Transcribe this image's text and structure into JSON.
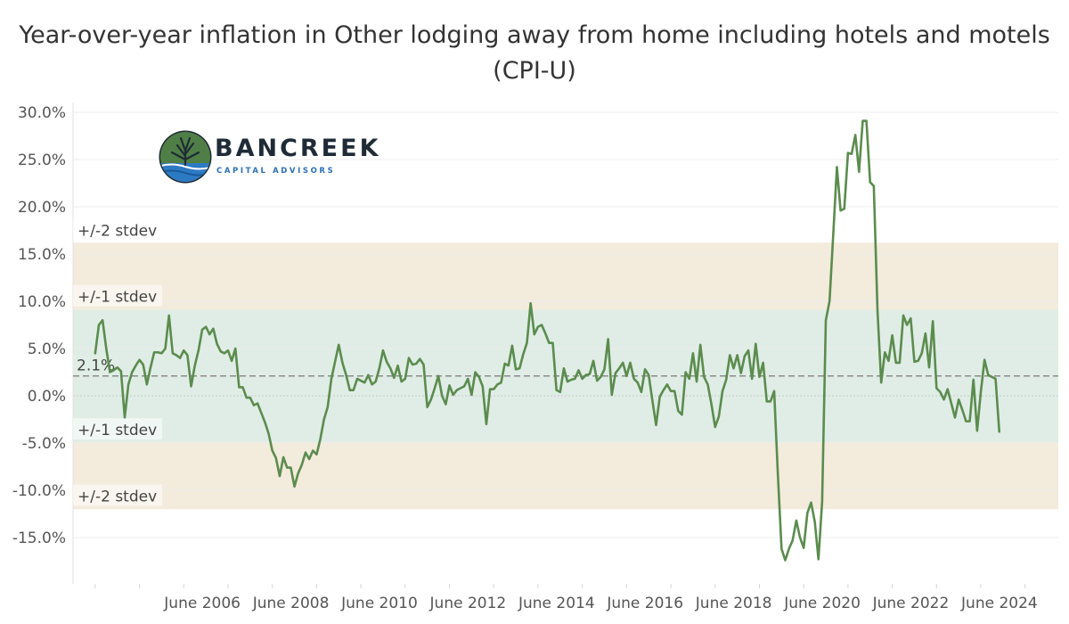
{
  "chart_data": {
    "type": "line",
    "title": "Year-over-year inflation in Other lodging away from home including hotels and motels (CPI-U)",
    "xlabel": "",
    "ylabel": "",
    "ylim": [
      -20,
      31
    ],
    "y_ticks": [
      30,
      25,
      20,
      15,
      10,
      5,
      0,
      -5,
      -10,
      -15
    ],
    "y_tick_labels": [
      "30.0%",
      "25.0%",
      "20.0%",
      "15.0%",
      "10.0%",
      "5.0%",
      "0.0%",
      "-5.0%",
      "-10.0%",
      "-15.0%"
    ],
    "x_range": [
      2003.5,
      2025.75
    ],
    "x_ticks": [
      2006.42,
      2008.42,
      2010.42,
      2012.42,
      2014.42,
      2016.42,
      2018.42,
      2020.42,
      2022.42,
      2024.42
    ],
    "x_tick_labels": [
      "June 2006",
      "June 2008",
      "June 2010",
      "June 2012",
      "June 2014",
      "June 2016",
      "June 2018",
      "June 2020",
      "June 2022",
      "June 2024"
    ],
    "grid": true,
    "mean": 2.1,
    "mean_label": "2.1%",
    "bands": [
      {
        "label": "+/-2 stdev",
        "lo": -12.0,
        "hi": 16.2,
        "color": "#f3ebdc"
      },
      {
        "label": "+/-1 stdev",
        "lo": -4.9,
        "hi": 9.1,
        "color": "#e0ede6"
      }
    ],
    "band_labels": [
      {
        "text": "+/-2 stdev",
        "y": 17.5
      },
      {
        "text": "+/-1 stdev",
        "y": 10.5
      },
      {
        "text": "+/-1 stdev",
        "y": -3.6
      },
      {
        "text": "+/-2 stdev",
        "y": -10.6
      }
    ],
    "series": [
      {
        "color": "#5b8c4e",
        "start": [
          2004,
          0
        ],
        "step_months": 1,
        "values": [
          4.5,
          7.5,
          8.0,
          5.0,
          2.5,
          2.7,
          3.0,
          2.6,
          -2.3,
          1.2,
          2.5,
          3.2,
          3.8,
          3.3,
          1.2,
          3.0,
          4.6,
          4.6,
          4.5,
          5.0,
          8.5,
          4.5,
          4.3,
          4.0,
          4.8,
          4.3,
          1.0,
          3.2,
          4.8,
          7.0,
          7.3,
          6.5,
          7.1,
          5.5,
          4.7,
          4.5,
          4.8,
          3.7,
          5.0,
          0.9,
          0.9,
          -0.2,
          -0.2,
          -1.0,
          -0.8,
          -1.8,
          -2.8,
          -4.0,
          -5.8,
          -6.6,
          -8.5,
          -6.5,
          -7.6,
          -7.6,
          -9.6,
          -8.2,
          -7.3,
          -6.0,
          -6.7,
          -5.8,
          -6.2,
          -4.6,
          -2.5,
          -1.2,
          1.8,
          3.6,
          5.4,
          3.5,
          2.2,
          0.6,
          0.6,
          1.8,
          1.6,
          1.4,
          2.2,
          1.2,
          1.5,
          2.9,
          4.8,
          3.6,
          2.9,
          1.9,
          3.2,
          1.5,
          1.8,
          4.0,
          3.3,
          3.4,
          3.9,
          3.3,
          -1.2,
          -0.4,
          0.8,
          2.1,
          0.0,
          -0.9,
          1.1,
          0.1,
          0.6,
          0.8,
          1.0,
          1.8,
          0.1,
          2.5,
          2.0,
          1.0,
          -3.0,
          0.7,
          0.7,
          1.2,
          1.4,
          3.4,
          3.2,
          5.3,
          2.8,
          2.9,
          4.4,
          5.6,
          9.8,
          6.5,
          7.3,
          7.5,
          6.6,
          5.6,
          5.6,
          0.6,
          0.4,
          2.9,
          1.5,
          1.7,
          1.8,
          2.7,
          1.8,
          2.2,
          2.3,
          3.7,
          1.6,
          2.0,
          2.8,
          6.0,
          0.1,
          2.4,
          2.9,
          3.5,
          2.1,
          3.5,
          1.8,
          1.4,
          0.4,
          2.8,
          2.2,
          -0.5,
          -3.1,
          -0.1,
          0.6,
          1.2,
          0.5,
          0.5,
          -1.6,
          -2.0,
          2.5,
          1.8,
          4.5,
          1.5,
          5.4,
          2.0,
          1.2,
          -0.9,
          -3.3,
          -2.2,
          0.5,
          1.7,
          4.3,
          2.9,
          4.3,
          2.4,
          4.2,
          4.8,
          1.8,
          5.5,
          2.0,
          3.5,
          -0.6,
          -0.6,
          0.5,
          -8.3,
          -16.2,
          -17.4,
          -16.2,
          -15.3,
          -13.2,
          -15.0,
          -16.1,
          -12.4,
          -11.3,
          -13.3,
          -17.3,
          -11.2,
          8.0,
          10.0,
          17.0,
          24.2,
          19.6,
          19.8,
          25.7,
          25.6,
          27.6,
          23.7,
          29.1,
          29.1,
          22.6,
          22.2,
          9.0,
          1.4,
          4.6,
          3.7,
          6.4,
          3.5,
          3.5,
          8.5,
          7.5,
          8.2,
          3.6,
          3.7,
          4.5,
          6.6,
          3.0,
          7.9,
          0.8,
          0.4,
          -0.4,
          0.7,
          -0.8,
          -2.3,
          -0.4,
          -1.5,
          -2.7,
          -2.7,
          1.7,
          -3.7,
          0.4,
          3.8,
          2.2,
          2.0,
          1.8,
          -3.8
        ]
      }
    ],
    "logo": {
      "name": "BANCREEK",
      "subtitle": "CAPITAL ADVISORS"
    }
  }
}
